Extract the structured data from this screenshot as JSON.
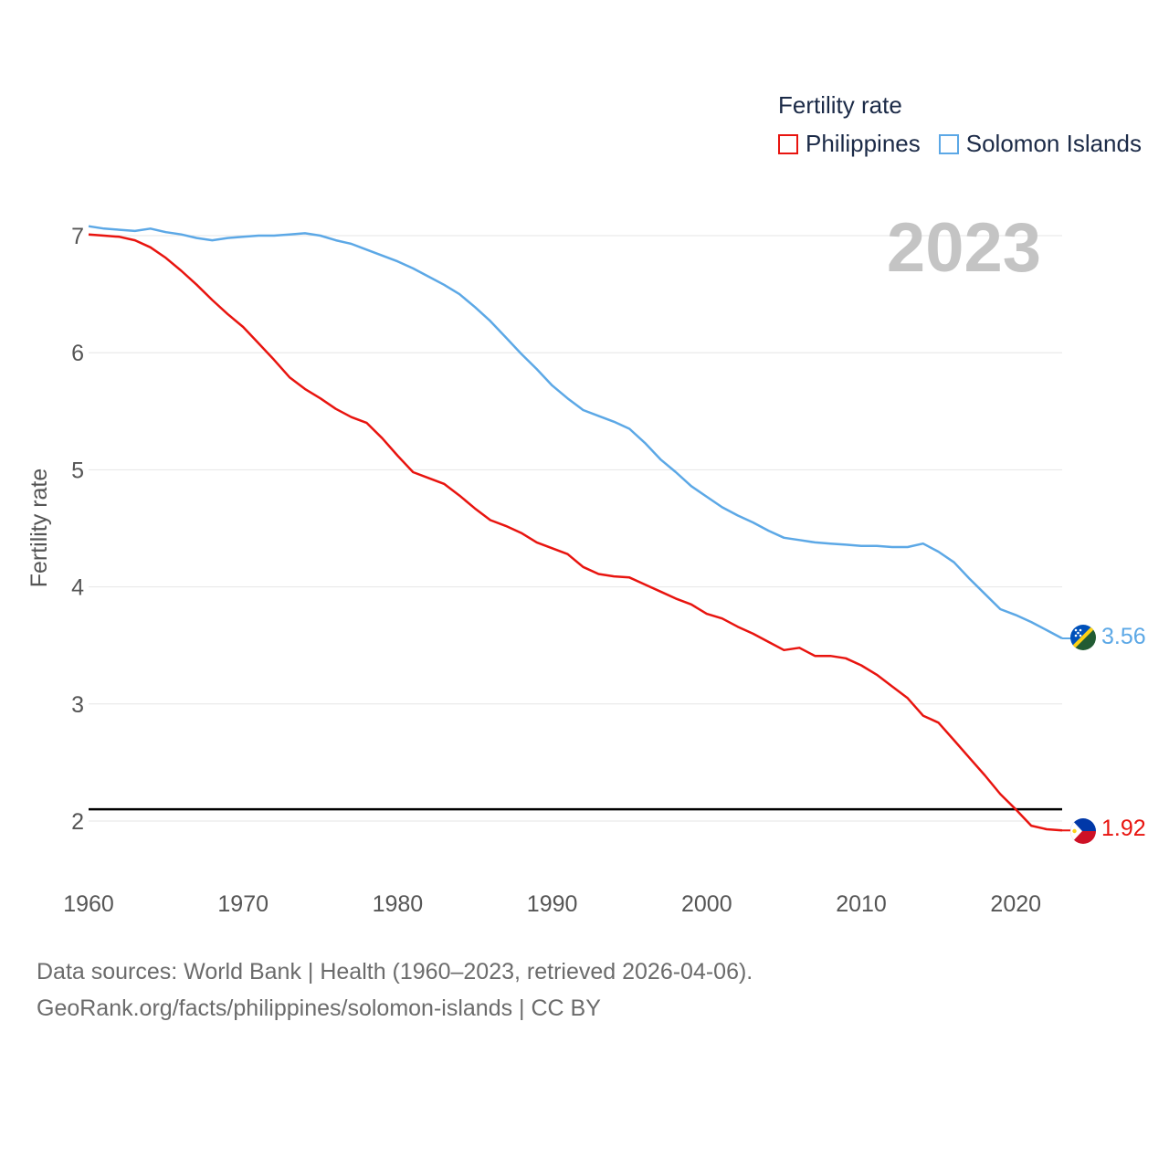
{
  "legend": {
    "title": "Fertility rate",
    "items": [
      {
        "label": "Philippines",
        "color": "#e8140f"
      },
      {
        "label": "Solomon Islands",
        "color": "#5ca8e6"
      }
    ]
  },
  "year_label": "2023",
  "source": {
    "line1": "Data sources: World Bank | Health (1960–2023, retrieved 2026-04-06).",
    "line2": "GeoRank.org/facts/philippines/solomon-islands | CC BY"
  },
  "end_labels": {
    "solomon": "3.56",
    "philippines": "1.92"
  },
  "chart_data": {
    "type": "line",
    "title": "",
    "xlabel": "",
    "ylabel": "Fertility rate",
    "xlim": [
      1960,
      2023
    ],
    "ylim": [
      1.5,
      7.2
    ],
    "x_ticks": [
      "1960",
      "1970",
      "1980",
      "1990",
      "2000",
      "2010",
      "2020"
    ],
    "y_ticks": [
      "2",
      "3",
      "4",
      "5",
      "6",
      "7"
    ],
    "grid": true,
    "reference_line": {
      "y": 2.1,
      "color": "#000000"
    },
    "x": [
      1960,
      1961,
      1962,
      1963,
      1964,
      1965,
      1966,
      1967,
      1968,
      1969,
      1970,
      1971,
      1972,
      1973,
      1974,
      1975,
      1976,
      1977,
      1978,
      1979,
      1980,
      1981,
      1982,
      1983,
      1984,
      1985,
      1986,
      1987,
      1988,
      1989,
      1990,
      1991,
      1992,
      1993,
      1994,
      1995,
      1996,
      1997,
      1998,
      1999,
      2000,
      2001,
      2002,
      2003,
      2004,
      2005,
      2006,
      2007,
      2008,
      2009,
      2010,
      2011,
      2012,
      2013,
      2014,
      2015,
      2016,
      2017,
      2018,
      2019,
      2020,
      2021,
      2022,
      2023
    ],
    "series": [
      {
        "name": "Solomon Islands",
        "color": "#5ca8e6",
        "values": [
          7.08,
          7.06,
          7.05,
          7.04,
          7.06,
          7.03,
          7.01,
          6.98,
          6.96,
          6.98,
          6.99,
          7.0,
          7.0,
          7.01,
          7.02,
          7.0,
          6.96,
          6.93,
          6.88,
          6.83,
          6.78,
          6.72,
          6.65,
          6.58,
          6.5,
          6.39,
          6.27,
          6.13,
          5.99,
          5.86,
          5.72,
          5.61,
          5.51,
          5.46,
          5.41,
          5.35,
          5.23,
          5.09,
          4.98,
          4.86,
          4.77,
          4.68,
          4.61,
          4.55,
          4.48,
          4.42,
          4.4,
          4.38,
          4.37,
          4.36,
          4.35,
          4.35,
          4.34,
          4.34,
          4.37,
          4.3,
          4.21,
          4.07,
          3.94,
          3.81,
          3.76,
          3.7,
          3.63,
          3.56
        ]
      },
      {
        "name": "Philippines",
        "color": "#e8140f",
        "values": [
          7.01,
          7.0,
          6.99,
          6.96,
          6.9,
          6.81,
          6.7,
          6.58,
          6.45,
          6.33,
          6.22,
          6.08,
          5.94,
          5.79,
          5.69,
          5.61,
          5.52,
          5.45,
          5.4,
          5.27,
          5.12,
          4.98,
          4.93,
          4.88,
          4.78,
          4.67,
          4.57,
          4.52,
          4.46,
          4.38,
          4.33,
          4.28,
          4.17,
          4.11,
          4.09,
          4.08,
          4.02,
          3.96,
          3.9,
          3.85,
          3.77,
          3.73,
          3.66,
          3.6,
          3.53,
          3.46,
          3.48,
          3.41,
          3.41,
          3.39,
          3.33,
          3.25,
          3.15,
          3.05,
          2.9,
          2.84,
          2.69,
          2.54,
          2.39,
          2.23,
          2.1,
          1.96,
          1.93,
          1.92
        ]
      }
    ]
  }
}
